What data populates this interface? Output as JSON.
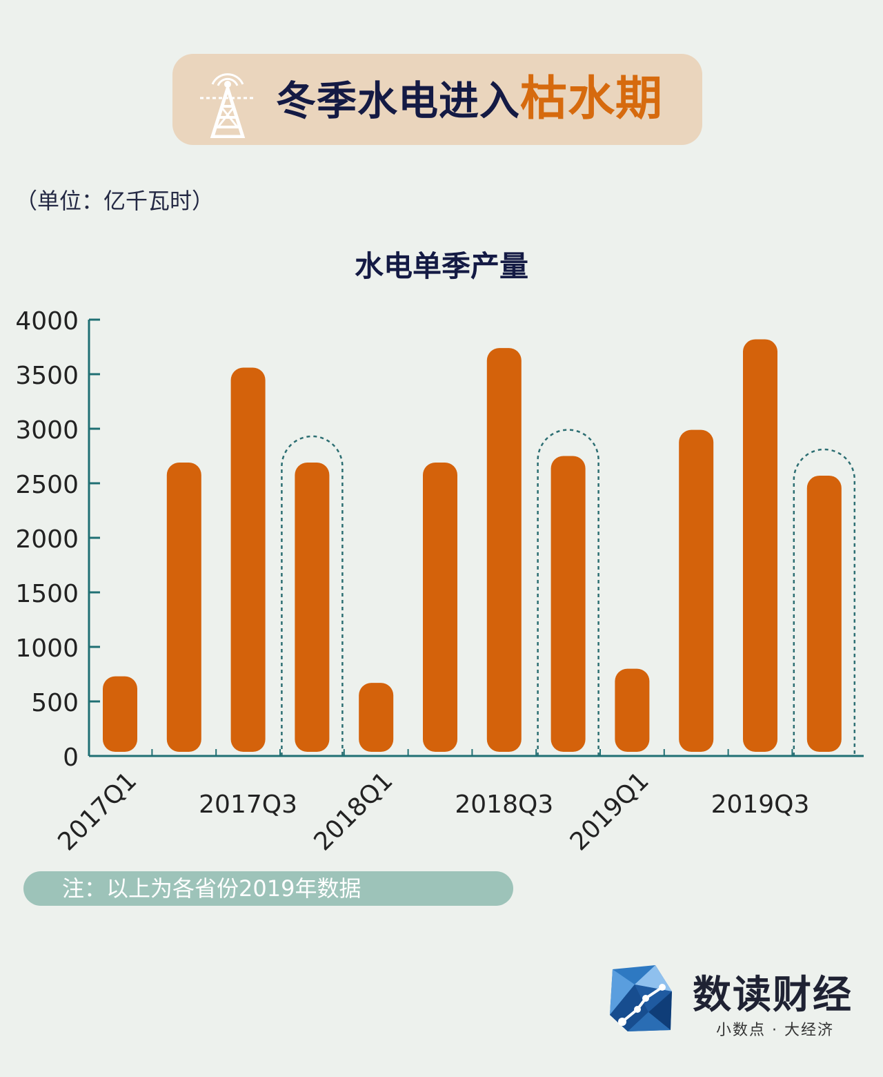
{
  "banner": {
    "title_main": "冬季水电进入",
    "title_accent": "枯水期",
    "icon": "transmission-tower-icon"
  },
  "unit_label": "（单位：亿千瓦时）",
  "chart_data": {
    "type": "bar",
    "title": "水电单季产量",
    "categories": [
      "2017Q1",
      "2017Q2",
      "2017Q3",
      "2017Q4",
      "2018Q1",
      "2018Q2",
      "2018Q3",
      "2018Q4",
      "2019Q1",
      "2019Q2",
      "2019Q3",
      "2019Q4"
    ],
    "values": [
      730,
      2690,
      3560,
      2690,
      670,
      2690,
      3740,
      2750,
      800,
      2990,
      3820,
      2570
    ],
    "visible_tick_labels": [
      "2017Q1",
      "2017Q3",
      "2018Q1",
      "2018Q3",
      "2019Q1",
      "2019Q3"
    ],
    "highlighted_categories": [
      "2017Q4",
      "2018Q4",
      "2019Q4"
    ],
    "yticks": [
      0,
      500,
      1000,
      1500,
      2000,
      2500,
      3000,
      3500,
      4000
    ],
    "ylim": [
      0,
      4000
    ],
    "grid": false,
    "legend": "none",
    "colors": {
      "bar": "#d4620b",
      "axis": "#1f6f73",
      "highlight": "#2c6e72"
    }
  },
  "note": "注：以上为各省份2019年数据",
  "logo": {
    "brand": "数读财经",
    "slogan": "小数点 · 大经济"
  }
}
